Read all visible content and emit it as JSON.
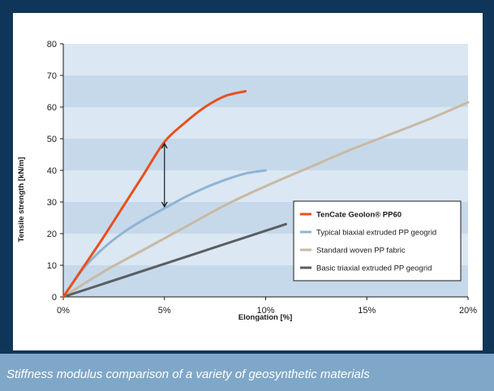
{
  "caption": "Stiffness modulus comparison of a variety of geosynthetic materials",
  "colors": {
    "frame": "#0f3659",
    "band_dark": "#c6d9ea",
    "band_light": "#dbe7f2",
    "caption_bar": "#7fa7c8"
  },
  "chart_data": {
    "type": "line",
    "xlabel": "Elongation [%]",
    "ylabel": "Tensile strength [kN/m]",
    "xlim": [
      0,
      20
    ],
    "ylim": [
      0,
      80
    ],
    "x_ticks": [
      {
        "value": 0,
        "label": "0%"
      },
      {
        "value": 5,
        "label": "5%"
      },
      {
        "value": 10,
        "label": "10%"
      },
      {
        "value": 15,
        "label": "15%"
      },
      {
        "value": 20,
        "label": "20%"
      }
    ],
    "y_ticks": [
      {
        "value": 0,
        "label": "0"
      },
      {
        "value": 10,
        "label": "10"
      },
      {
        "value": 20,
        "label": "20"
      },
      {
        "value": 30,
        "label": "30"
      },
      {
        "value": 40,
        "label": "40"
      },
      {
        "value": 50,
        "label": "50"
      },
      {
        "value": 60,
        "label": "60"
      },
      {
        "value": 70,
        "label": "70"
      },
      {
        "value": 80,
        "label": "80"
      }
    ],
    "grid": "horizontal bands",
    "legend_position": "bottom-right",
    "series": [
      {
        "name": "TenCate Geolon® PP60",
        "color": "#e8501e",
        "bold": true,
        "points": [
          [
            0,
            0
          ],
          [
            1,
            9.5
          ],
          [
            2,
            19
          ],
          [
            3,
            29
          ],
          [
            4,
            39
          ],
          [
            5,
            49
          ],
          [
            6,
            55
          ],
          [
            7,
            60
          ],
          [
            8,
            63.5
          ],
          [
            9,
            65
          ]
        ]
      },
      {
        "name": "Typical biaxial extruded PP geogrid",
        "color": "#8fb4d4",
        "bold": false,
        "points": [
          [
            0,
            0
          ],
          [
            1,
            9
          ],
          [
            2,
            15.5
          ],
          [
            3,
            20.5
          ],
          [
            4,
            24.5
          ],
          [
            5,
            28
          ],
          [
            6,
            31.5
          ],
          [
            7,
            34.5
          ],
          [
            8,
            37
          ],
          [
            9,
            39
          ],
          [
            10,
            40
          ]
        ]
      },
      {
        "name": "Standard woven PP fabric",
        "color": "#c9b9a3",
        "bold": false,
        "points": [
          [
            0,
            0
          ],
          [
            2,
            8
          ],
          [
            4,
            15
          ],
          [
            6,
            22
          ],
          [
            8,
            29
          ],
          [
            10,
            35
          ],
          [
            12,
            40.5
          ],
          [
            14,
            46
          ],
          [
            16,
            51
          ],
          [
            18,
            56
          ],
          [
            20,
            61.5
          ]
        ]
      },
      {
        "name": "Basic triaxial extruded PP geogrid",
        "color": "#5a5e61",
        "bold": false,
        "points": [
          [
            0,
            0
          ],
          [
            11,
            23
          ]
        ]
      }
    ],
    "annotation": {
      "type": "double-arrow",
      "x": 5,
      "y_from": 28,
      "y_to": 49
    }
  }
}
